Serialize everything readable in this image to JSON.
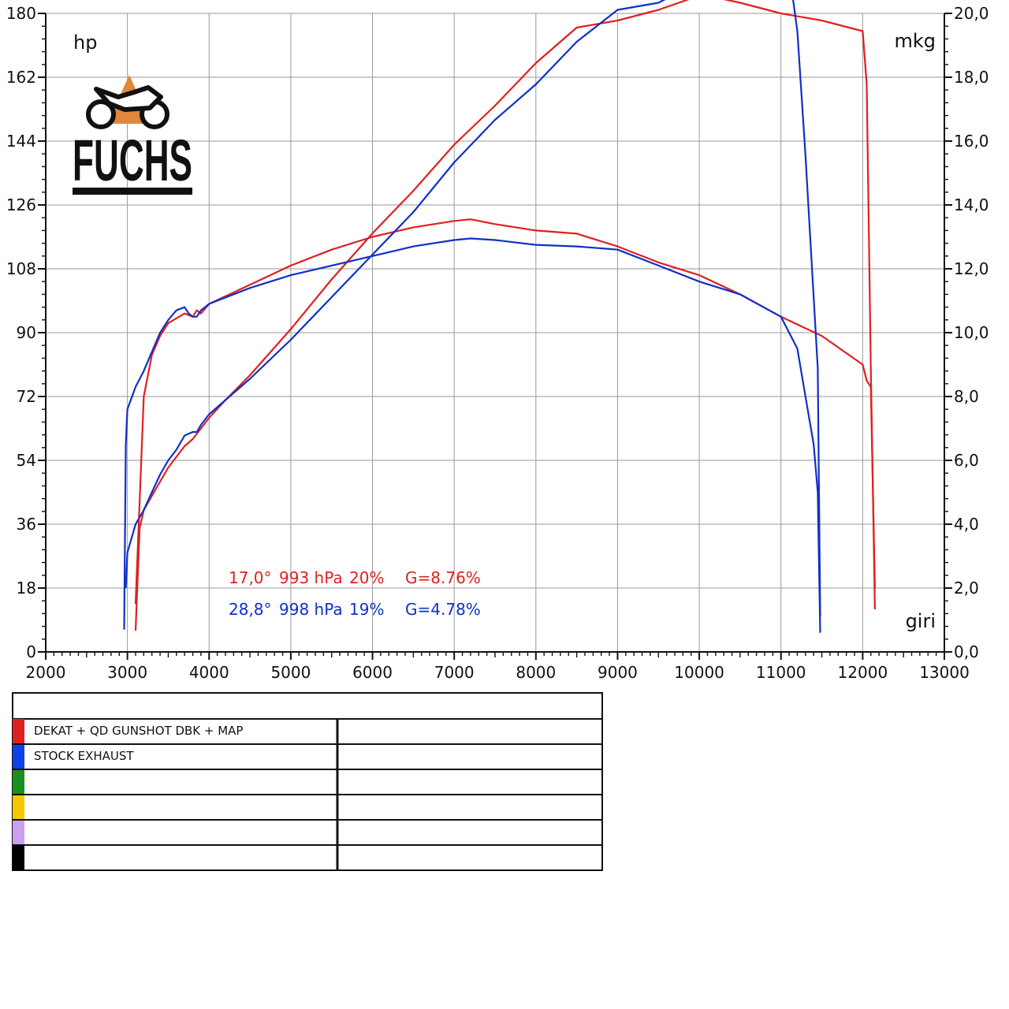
{
  "chart_data": {
    "type": "line",
    "x_axis": {
      "label": "giri",
      "range": [
        2000,
        13000
      ],
      "ticks": [
        "2000",
        "3000",
        "4000",
        "5000",
        "6000",
        "7000",
        "8000",
        "9000",
        "10000",
        "11000",
        "12000",
        "13000"
      ]
    },
    "y_left": {
      "label": "hp",
      "range": [
        0,
        180
      ],
      "ticks": [
        "0",
        "18",
        "36",
        "54",
        "72",
        "90",
        "108",
        "126",
        "144",
        "162",
        "180"
      ]
    },
    "y_right": {
      "label": "mkg",
      "range": [
        0,
        20
      ],
      "ticks": [
        "0,0",
        "2,0",
        "4,0",
        "6,0",
        "8,0",
        "10,0",
        "12,0",
        "14,0",
        "16,0",
        "18,0",
        "20,0"
      ]
    },
    "grid": true,
    "brand": "FUCHS",
    "conditions": [
      {
        "temp": "17,0°",
        "pressure": "993 hPa",
        "humidity": "20%",
        "g": "G=8.76%",
        "color": "#e02020"
      },
      {
        "temp": "28,8°",
        "pressure": "998 hPa",
        "humidity": "19%",
        "g": "G=4.78%",
        "color": "#1030c8"
      }
    ],
    "series": [
      {
        "name": "DEKAT + QD GUNSHOT DBK + MAP",
        "color": "#e02020",
        "power_hp": {
          "x": [
            3100,
            3150,
            3200,
            3300,
            3400,
            3500,
            3600,
            3700,
            3800,
            3900,
            4000,
            4200,
            4500,
            5000,
            5500,
            6000,
            6500,
            7000,
            7500,
            8000,
            8500,
            9000,
            9500,
            10000,
            10100,
            10500,
            11000,
            11500,
            12000,
            12050,
            12100,
            12150
          ],
          "y": [
            6,
            35,
            40,
            44,
            48,
            52,
            55,
            58,
            60,
            63,
            66,
            71,
            78,
            91,
            105,
            118,
            130,
            143,
            154,
            166,
            176,
            178,
            181,
            185,
            185,
            183,
            180,
            178,
            175,
            160,
            80,
            12
          ]
        },
        "torque_mkg": {
          "x": [
            3100,
            3200,
            3300,
            3400,
            3500,
            3700,
            3800,
            3850,
            3900,
            4000,
            4500,
            5000,
            5500,
            6000,
            6500,
            7000,
            7200,
            7500,
            8000,
            8500,
            9000,
            9500,
            10000,
            10500,
            11000,
            11500,
            12000,
            12050,
            12100,
            12150
          ],
          "y": [
            1.5,
            8.0,
            9.3,
            9.9,
            10.3,
            10.6,
            10.5,
            10.7,
            10.6,
            10.9,
            11.5,
            12.1,
            12.6,
            13.0,
            13.3,
            13.5,
            13.55,
            13.4,
            13.2,
            13.1,
            12.7,
            12.2,
            11.8,
            11.2,
            10.5,
            9.9,
            9.0,
            8.5,
            8.3,
            2.0
          ]
        }
      },
      {
        "name": "STOCK EXHAUST",
        "color": "#1030c8",
        "power_hp": {
          "x": [
            2980,
            3000,
            3100,
            3200,
            3300,
            3400,
            3500,
            3600,
            3700,
            3800,
            3850,
            3900,
            4000,
            4500,
            5000,
            5500,
            6000,
            6500,
            7000,
            7500,
            8000,
            8500,
            9000,
            9500,
            10000,
            10500,
            10700,
            11000,
            11100,
            11200,
            11300,
            11400,
            11450,
            11480
          ],
          "y": [
            18,
            28,
            36,
            40,
            45,
            50,
            54,
            57,
            61,
            62,
            62,
            64,
            67,
            77,
            88,
            100,
            112,
            124,
            138,
            150,
            160,
            172,
            181,
            183,
            189,
            195,
            196,
            196,
            192,
            175,
            140,
            100,
            80,
            10
          ]
        },
        "torque_mkg": {
          "x": [
            2960,
            2980,
            3000,
            3100,
            3200,
            3300,
            3400,
            3500,
            3600,
            3700,
            3750,
            3800,
            3850,
            3900,
            4000,
            4500,
            5000,
            5500,
            6000,
            6500,
            7000,
            7200,
            7500,
            8000,
            8500,
            9000,
            9500,
            10000,
            10500,
            11000,
            11200,
            11300,
            11400,
            11450,
            11480
          ],
          "y": [
            0.7,
            6.5,
            7.6,
            8.3,
            8.8,
            9.4,
            10.0,
            10.4,
            10.7,
            10.8,
            10.6,
            10.5,
            10.5,
            10.7,
            10.9,
            11.4,
            11.8,
            12.1,
            12.4,
            12.7,
            12.9,
            12.95,
            12.9,
            12.75,
            12.7,
            12.6,
            12.1,
            11.6,
            11.2,
            10.5,
            9.5,
            8.0,
            6.5,
            5.0,
            0.6
          ]
        }
      }
    ],
    "legend_rows": [
      {
        "color": "#e02020",
        "label": "DEKAT + QD GUNSHOT DBK + MAP",
        "note": ""
      },
      {
        "color": "#1040e8",
        "label": "STOCK EXHAUST",
        "note": ""
      },
      {
        "color": "#1a9020",
        "label": "",
        "note": ""
      },
      {
        "color": "#f7c800",
        "label": "",
        "note": ""
      },
      {
        "color": "#c9a0f0",
        "label": "",
        "note": ""
      },
      {
        "color": "#000000",
        "label": "",
        "note": ""
      }
    ]
  }
}
